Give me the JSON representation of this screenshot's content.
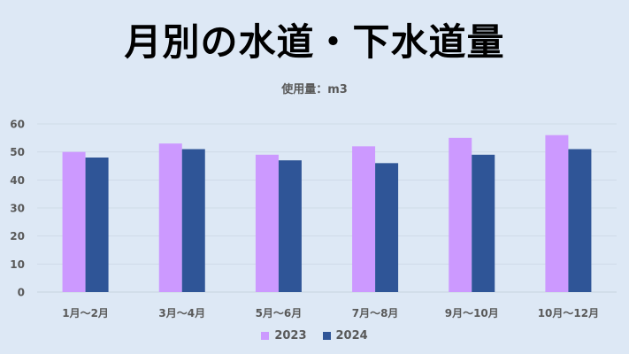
{
  "chart_data": {
    "type": "bar",
    "title": "月別の水道・下水道量",
    "subtitle": "使用量：m3",
    "categories": [
      "1月～2月",
      "3月～4月",
      "5月～6月",
      "7月～8月",
      "9月～10月",
      "10月～12月"
    ],
    "series": [
      {
        "name": "2023",
        "color": "#cc99ff",
        "values": [
          50,
          53,
          49,
          52,
          55,
          56
        ]
      },
      {
        "name": "2024",
        "color": "#2f5597",
        "values": [
          48,
          51,
          47,
          46,
          49,
          51
        ]
      }
    ],
    "ylim": [
      0,
      60
    ],
    "yticks": [
      0,
      10,
      20,
      30,
      40,
      50,
      60
    ],
    "grid": true,
    "legend": "bottom"
  }
}
